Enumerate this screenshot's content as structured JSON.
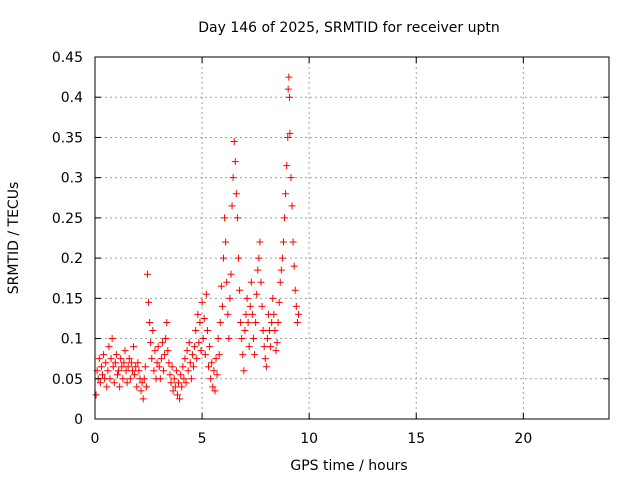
{
  "chart_data": {
    "type": "scatter",
    "title": "Day 146 of 2025, SRMTID for receiver uptn",
    "xlabel": "GPS time / hours",
    "ylabel": "SRMTID / TECUs",
    "xlim": [
      0,
      24
    ],
    "ylim": [
      0,
      0.45
    ],
    "x_ticks": [
      0,
      5,
      10,
      15,
      20
    ],
    "x_tick_labels": [
      "0",
      "5",
      "10",
      "15",
      "20"
    ],
    "y_ticks": [
      0,
      0.05,
      0.1,
      0.15,
      0.2,
      0.25,
      0.3,
      0.35,
      0.4,
      0.45
    ],
    "y_tick_labels": [
      "0",
      "0.05",
      "0.1",
      "0.15",
      "0.2",
      "0.25",
      "0.3",
      "0.35",
      "0.4",
      "0.45"
    ],
    "grid": true,
    "marker": "+",
    "marker_color": "#ff0000",
    "series": [
      {
        "name": "SRMTID",
        "points": [
          [
            0.05,
            0.03
          ],
          [
            0.1,
            0.06
          ],
          [
            0.15,
            0.05
          ],
          [
            0.2,
            0.075
          ],
          [
            0.25,
            0.045
          ],
          [
            0.3,
            0.065
          ],
          [
            0.35,
            0.055
          ],
          [
            0.4,
            0.08
          ],
          [
            0.45,
            0.05
          ],
          [
            0.5,
            0.07
          ],
          [
            0.55,
            0.04
          ],
          [
            0.6,
            0.06
          ],
          [
            0.65,
            0.09
          ],
          [
            0.7,
            0.05
          ],
          [
            0.75,
            0.075
          ],
          [
            0.8,
            0.1
          ],
          [
            0.85,
            0.065
          ],
          [
            0.9,
            0.045
          ],
          [
            0.95,
            0.07
          ],
          [
            1.0,
            0.08
          ],
          [
            1.05,
            0.055
          ],
          [
            1.1,
            0.06
          ],
          [
            1.15,
            0.04
          ],
          [
            1.2,
            0.075
          ],
          [
            1.25,
            0.065
          ],
          [
            1.3,
            0.05
          ],
          [
            1.35,
            0.07
          ],
          [
            1.4,
            0.085
          ],
          [
            1.45,
            0.06
          ],
          [
            1.5,
            0.045
          ],
          [
            1.55,
            0.065
          ],
          [
            1.6,
            0.075
          ],
          [
            1.65,
            0.05
          ],
          [
            1.7,
            0.07
          ],
          [
            1.75,
            0.06
          ],
          [
            1.8,
            0.09
          ],
          [
            1.85,
            0.055
          ],
          [
            1.9,
            0.065
          ],
          [
            1.95,
            0.04
          ],
          [
            2.0,
            0.07
          ],
          [
            2.05,
            0.06
          ],
          [
            2.1,
            0.05
          ],
          [
            2.15,
            0.035
          ],
          [
            2.2,
            0.045
          ],
          [
            2.25,
            0.025
          ],
          [
            2.3,
            0.05
          ],
          [
            2.35,
            0.065
          ],
          [
            2.4,
            0.04
          ],
          [
            2.45,
            0.18
          ],
          [
            2.5,
            0.145
          ],
          [
            2.55,
            0.12
          ],
          [
            2.6,
            0.095
          ],
          [
            2.65,
            0.075
          ],
          [
            2.7,
            0.11
          ],
          [
            2.75,
            0.06
          ],
          [
            2.8,
            0.085
          ],
          [
            2.85,
            0.05
          ],
          [
            2.9,
            0.07
          ],
          [
            2.95,
            0.09
          ],
          [
            3.0,
            0.065
          ],
          [
            3.05,
            0.05
          ],
          [
            3.1,
            0.075
          ],
          [
            3.15,
            0.095
          ],
          [
            3.2,
            0.06
          ],
          [
            3.25,
            0.08
          ],
          [
            3.3,
            0.1
          ],
          [
            3.35,
            0.12
          ],
          [
            3.4,
            0.085
          ],
          [
            3.45,
            0.07
          ],
          [
            3.5,
            0.055
          ],
          [
            3.55,
            0.045
          ],
          [
            3.6,
            0.065
          ],
          [
            3.65,
            0.035
          ],
          [
            3.7,
            0.05
          ],
          [
            3.75,
            0.04
          ],
          [
            3.8,
            0.06
          ],
          [
            3.85,
            0.03
          ],
          [
            3.9,
            0.045
          ],
          [
            3.95,
            0.025
          ],
          [
            4.0,
            0.055
          ],
          [
            4.05,
            0.04
          ],
          [
            4.1,
            0.065
          ],
          [
            4.15,
            0.05
          ],
          [
            4.2,
            0.075
          ],
          [
            4.25,
            0.045
          ],
          [
            4.3,
            0.085
          ],
          [
            4.35,
            0.06
          ],
          [
            4.4,
            0.095
          ],
          [
            4.45,
            0.07
          ],
          [
            4.5,
            0.05
          ],
          [
            4.55,
            0.08
          ],
          [
            4.6,
            0.065
          ],
          [
            4.65,
            0.09
          ],
          [
            4.7,
            0.11
          ],
          [
            4.75,
            0.075
          ],
          [
            4.8,
            0.13
          ],
          [
            4.85,
            0.095
          ],
          [
            4.9,
            0.12
          ],
          [
            4.95,
            0.085
          ],
          [
            5.0,
            0.145
          ],
          [
            5.05,
            0.1
          ],
          [
            5.1,
            0.125
          ],
          [
            5.15,
            0.08
          ],
          [
            5.2,
            0.155
          ],
          [
            5.25,
            0.11
          ],
          [
            5.3,
            0.065
          ],
          [
            5.35,
            0.09
          ],
          [
            5.4,
            0.05
          ],
          [
            5.45,
            0.07
          ],
          [
            5.5,
            0.04
          ],
          [
            5.55,
            0.06
          ],
          [
            5.6,
            0.035
          ],
          [
            5.65,
            0.075
          ],
          [
            5.7,
            0.055
          ],
          [
            5.75,
            0.1
          ],
          [
            5.8,
            0.08
          ],
          [
            5.85,
            0.12
          ],
          [
            5.9,
            0.165
          ],
          [
            5.95,
            0.14
          ],
          [
            6.0,
            0.2
          ],
          [
            6.05,
            0.25
          ],
          [
            6.1,
            0.22
          ],
          [
            6.15,
            0.17
          ],
          [
            6.2,
            0.13
          ],
          [
            6.25,
            0.1
          ],
          [
            6.3,
            0.15
          ],
          [
            6.35,
            0.18
          ],
          [
            6.4,
            0.265
          ],
          [
            6.45,
            0.3
          ],
          [
            6.5,
            0.345
          ],
          [
            6.55,
            0.32
          ],
          [
            6.6,
            0.28
          ],
          [
            6.65,
            0.25
          ],
          [
            6.7,
            0.2
          ],
          [
            6.75,
            0.16
          ],
          [
            6.8,
            0.12
          ],
          [
            6.85,
            0.1
          ],
          [
            6.9,
            0.08
          ],
          [
            6.95,
            0.06
          ],
          [
            7.0,
            0.11
          ],
          [
            7.05,
            0.13
          ],
          [
            7.1,
            0.15
          ],
          [
            7.15,
            0.12
          ],
          [
            7.2,
            0.09
          ],
          [
            7.25,
            0.14
          ],
          [
            7.3,
            0.17
          ],
          [
            7.35,
            0.13
          ],
          [
            7.4,
            0.1
          ],
          [
            7.45,
            0.08
          ],
          [
            7.5,
            0.12
          ],
          [
            7.55,
            0.155
          ],
          [
            7.6,
            0.185
          ],
          [
            7.65,
            0.2
          ],
          [
            7.7,
            0.22
          ],
          [
            7.75,
            0.17
          ],
          [
            7.8,
            0.14
          ],
          [
            7.85,
            0.11
          ],
          [
            7.9,
            0.09
          ],
          [
            7.95,
            0.075
          ],
          [
            8.0,
            0.065
          ],
          [
            8.05,
            0.1
          ],
          [
            8.1,
            0.13
          ],
          [
            8.15,
            0.11
          ],
          [
            8.2,
            0.09
          ],
          [
            8.25,
            0.12
          ],
          [
            8.3,
            0.15
          ],
          [
            8.35,
            0.13
          ],
          [
            8.4,
            0.11
          ],
          [
            8.45,
            0.085
          ],
          [
            8.5,
            0.095
          ],
          [
            8.55,
            0.12
          ],
          [
            8.6,
            0.145
          ],
          [
            8.65,
            0.17
          ],
          [
            8.7,
            0.185
          ],
          [
            8.75,
            0.2
          ],
          [
            8.8,
            0.22
          ],
          [
            8.85,
            0.25
          ],
          [
            8.9,
            0.28
          ],
          [
            8.95,
            0.315
          ],
          [
            9.0,
            0.35
          ],
          [
            9.02,
            0.41
          ],
          [
            9.05,
            0.425
          ],
          [
            9.08,
            0.4
          ],
          [
            9.1,
            0.355
          ],
          [
            9.15,
            0.3
          ],
          [
            9.2,
            0.265
          ],
          [
            9.25,
            0.22
          ],
          [
            9.3,
            0.19
          ],
          [
            9.35,
            0.16
          ],
          [
            9.4,
            0.14
          ],
          [
            9.45,
            0.12
          ],
          [
            9.5,
            0.13
          ]
        ]
      }
    ]
  }
}
